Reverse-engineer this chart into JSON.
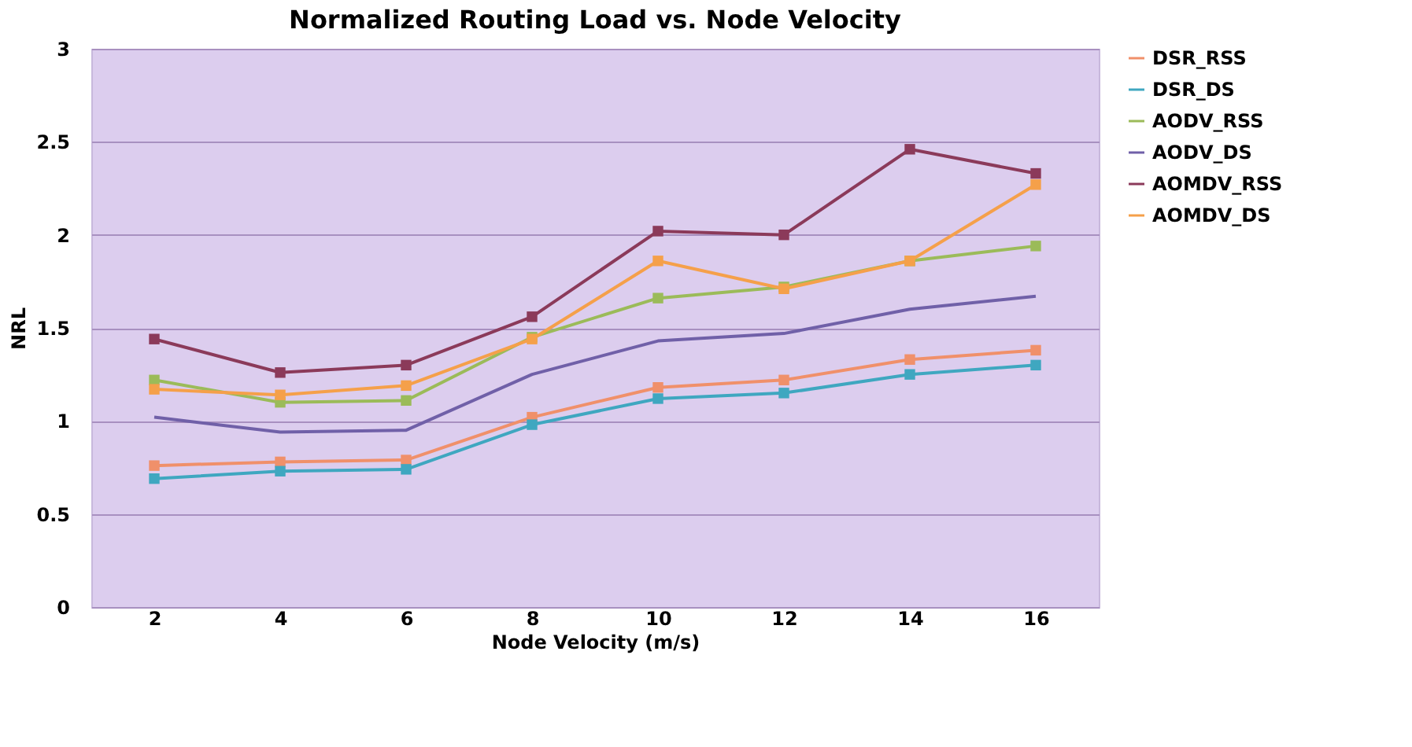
{
  "chart_data": {
    "type": "line",
    "title": "Normalized Routing Load vs. Node Velocity",
    "xlabel": "Node Velocity (m/s)",
    "ylabel": "NRL",
    "categories": [
      "2",
      "4",
      "6",
      "8",
      "10",
      "12",
      "14",
      "16"
    ],
    "ylim": [
      0,
      3
    ],
    "yticks": [
      0,
      0.5,
      1,
      1.5,
      2,
      2.5,
      3
    ],
    "grid": "y",
    "legend": "right",
    "marker": "square",
    "series": [
      {
        "name": "DSR_RSS",
        "color": "#f0906a",
        "values": [
          0.76,
          0.78,
          0.79,
          1.02,
          1.18,
          1.22,
          1.33,
          1.38
        ]
      },
      {
        "name": "DSR_DS",
        "color": "#3fa7c0",
        "values": [
          0.69,
          0.73,
          0.74,
          0.98,
          1.12,
          1.15,
          1.25,
          1.3
        ]
      },
      {
        "name": "AODV_RSS",
        "color": "#9bbb59",
        "values": [
          1.22,
          1.1,
          1.11,
          1.45,
          1.66,
          1.72,
          1.86,
          1.94
        ]
      },
      {
        "name": "AODV_DS",
        "color": "#7060a8",
        "marker": "none",
        "values": [
          1.02,
          0.94,
          0.95,
          1.25,
          1.43,
          1.47,
          1.6,
          1.67
        ]
      },
      {
        "name": "AOMDV_RSS",
        "color": "#8b3a5a",
        "values": [
          1.44,
          1.26,
          1.3,
          1.56,
          2.02,
          2.0,
          2.46,
          2.33
        ]
      },
      {
        "name": "AOMDV_DS",
        "color": "#f5a04a",
        "values": [
          1.17,
          1.14,
          1.19,
          1.44,
          1.86,
          1.71,
          1.86,
          2.27
        ]
      }
    ]
  }
}
